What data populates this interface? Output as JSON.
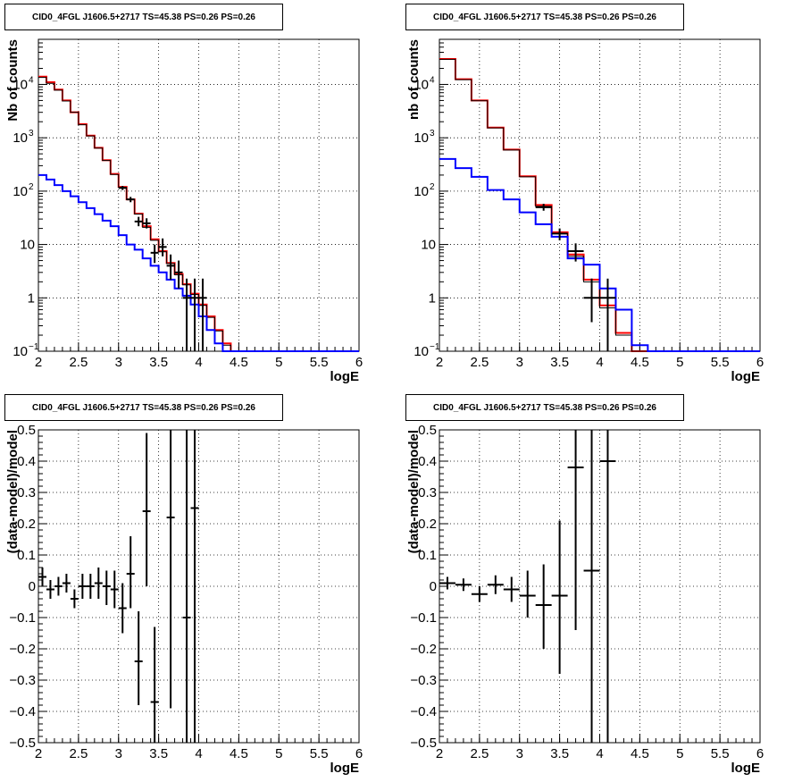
{
  "chart_data": [
    {
      "type": "histogram",
      "title": "CID0_4FGL J1606.5+2717 TS=45.38 PS=0.26 PS=0.26",
      "xlabel": "logE",
      "ylabel": "Nb of counts",
      "xlim": [
        2,
        6
      ],
      "ylim": [
        0.1,
        70000
      ],
      "yscale": "log",
      "grid": true,
      "xticks": [
        "2",
        "2.5",
        "3",
        "3.5",
        "4",
        "4.5",
        "5",
        "5.5",
        "6"
      ],
      "yticks": [
        {
          "value": 0.1,
          "label": "10",
          "sup": "−1"
        },
        {
          "value": 1,
          "label": "1",
          "sup": ""
        },
        {
          "value": 10,
          "label": "10",
          "sup": ""
        },
        {
          "value": 100,
          "label": "10",
          "sup": "2"
        },
        {
          "value": 1000,
          "label": "10",
          "sup": "3"
        },
        {
          "value": 10000,
          "label": "10",
          "sup": "4"
        }
      ],
      "bin_width": 0.1,
      "bin_start": 2.0,
      "series": [
        {
          "color": "#ff0000",
          "style": "step",
          "values": [
            14000,
            11000,
            8000,
            5000,
            3000,
            1800,
            1100,
            650,
            380,
            210,
            120,
            70,
            38,
            22,
            12.5,
            7.5,
            4.5,
            2.8,
            1.8,
            1.2,
            0.75,
            0.45,
            0.25,
            0.14,
            0.1,
            0.1,
            0.1,
            0.1,
            0.1,
            0.1,
            0.1,
            0.1,
            0.1,
            0.1,
            0.1,
            0.1,
            0.1,
            0.1,
            0.1,
            0.1
          ]
        },
        {
          "color": "#000000",
          "style": "step",
          "values": [
            13500,
            10500,
            7800,
            4900,
            3000,
            1750,
            1080,
            640,
            375,
            205,
            118,
            69,
            37,
            21,
            12,
            7.3,
            4.4,
            2.7,
            1.75,
            1.15,
            0.72,
            0.43,
            0.24,
            0.13,
            0.1,
            0.1,
            0.1,
            0.1,
            0.1,
            0.1,
            0.1,
            0.1,
            0.1,
            0.1,
            0.1,
            0.1,
            0.1,
            0.1,
            0.1,
            0.1
          ]
        },
        {
          "color": "#0000ff",
          "style": "step",
          "values": [
            200,
            165,
            130,
            100,
            80,
            62,
            48,
            37,
            28,
            22,
            15,
            10,
            8,
            5.5,
            4,
            3,
            2.2,
            1.5,
            1.1,
            0.75,
            0.45,
            0.25,
            0.14,
            0.1,
            0.1,
            0.1,
            0.1,
            0.1,
            0.1,
            0.1,
            0.1,
            0.1,
            0.1,
            0.1,
            0.1,
            0.1,
            0.1,
            0.1,
            0.1,
            0.1
          ]
        },
        {
          "color": "#000000",
          "style": "errorbar",
          "points": [
            {
              "x": 3.05,
              "y": 115,
              "ylo": 105,
              "yhi": 125
            },
            {
              "x": 3.15,
              "y": 70,
              "ylo": 62,
              "yhi": 78
            },
            {
              "x": 3.25,
              "y": 27,
              "ylo": 22,
              "yhi": 33
            },
            {
              "x": 3.35,
              "y": 25,
              "ylo": 20,
              "yhi": 31
            },
            {
              "x": 3.45,
              "y": 7,
              "ylo": 4.5,
              "yhi": 10
            },
            {
              "x": 3.55,
              "y": 9,
              "ylo": 6,
              "yhi": 13
            },
            {
              "x": 3.65,
              "y": 4,
              "ylo": 2.2,
              "yhi": 6.5
            },
            {
              "x": 3.75,
              "y": 3,
              "ylo": 1.5,
              "yhi": 5
            },
            {
              "x": 3.85,
              "y": 1,
              "ylo": 0.1,
              "yhi": 2.3
            },
            {
              "x": 3.95,
              "y": 1,
              "ylo": 0.1,
              "yhi": 2.3
            },
            {
              "x": 4.05,
              "y": 1,
              "ylo": 0.1,
              "yhi": 2.3
            }
          ]
        }
      ]
    },
    {
      "type": "histogram",
      "title": "CID0_4FGL J1606.5+2717 TS=45.38 PS=0.26 PS=0.26",
      "xlabel": "logE",
      "ylabel": "nb of counts",
      "xlim": [
        2,
        6
      ],
      "ylim": [
        0.1,
        70000
      ],
      "yscale": "log",
      "grid": true,
      "xticks": [
        "2",
        "2.5",
        "3",
        "3.5",
        "4",
        "4.5",
        "5",
        "5.5",
        "6"
      ],
      "yticks": [
        {
          "value": 0.1,
          "label": "10",
          "sup": "−1"
        },
        {
          "value": 1,
          "label": "1",
          "sup": ""
        },
        {
          "value": 10,
          "label": "10",
          "sup": ""
        },
        {
          "value": 100,
          "label": "10",
          "sup": "2"
        },
        {
          "value": 1000,
          "label": "10",
          "sup": "3"
        },
        {
          "value": 10000,
          "label": "10",
          "sup": "4"
        }
      ],
      "bin_width": 0.2,
      "bin_start": 2.0,
      "series": [
        {
          "color": "#ff0000",
          "style": "step",
          "values": [
            30000,
            12500,
            5000,
            1550,
            600,
            190,
            55,
            17,
            6.5,
            2.2,
            0.72,
            0.22,
            0.1,
            0.1,
            0.1,
            0.1,
            0.1,
            0.1,
            0.1,
            0.1
          ]
        },
        {
          "color": "#000000",
          "style": "step",
          "values": [
            29500,
            12300,
            4950,
            1530,
            590,
            185,
            52,
            16,
            6,
            2,
            0.65,
            0.2,
            0.1,
            0.1,
            0.1,
            0.1,
            0.1,
            0.1,
            0.1,
            0.1
          ]
        },
        {
          "color": "#0000ff",
          "style": "step",
          "values": [
            400,
            270,
            185,
            105,
            70,
            40,
            24,
            14,
            5.5,
            4.2,
            1.5,
            0.6,
            0.13,
            0.1,
            0.1,
            0.1,
            0.1,
            0.1,
            0.1,
            0.1
          ]
        },
        {
          "color": "#000000",
          "style": "errorbar",
          "points": [
            {
              "x": 3.3,
              "y": 50,
              "ylo": 43,
              "yhi": 58
            },
            {
              "x": 3.5,
              "y": 16,
              "ylo": 12,
              "yhi": 20
            },
            {
              "x": 3.7,
              "y": 7.5,
              "ylo": 4.8,
              "yhi": 10.5
            },
            {
              "x": 3.9,
              "y": 1,
              "ylo": 0.35,
              "yhi": 2.3
            },
            {
              "x": 4.1,
              "y": 1,
              "ylo": 0.1,
              "yhi": 2.3
            }
          ]
        }
      ]
    },
    {
      "type": "scatter",
      "title": "CID0_4FGL J1606.5+2717 TS=45.38 PS=0.26 PS=0.26",
      "xlabel": "logE",
      "ylabel": "(data-model)/model",
      "xlim": [
        2,
        6
      ],
      "ylim": [
        -0.5,
        0.5
      ],
      "grid": true,
      "xticks": [
        "2",
        "2.5",
        "3",
        "3.5",
        "4",
        "4.5",
        "5",
        "5.5",
        "6"
      ],
      "yticks": [
        "−0.5",
        "−0.4",
        "−0.3",
        "−0.2",
        "−0.1",
        "0",
        "0.1",
        "0.2",
        "0.3",
        "0.4",
        "0.5"
      ],
      "ytick_values": [
        -0.5,
        -0.4,
        -0.3,
        -0.2,
        -0.1,
        0,
        0.1,
        0.2,
        0.3,
        0.4,
        0.5
      ],
      "xerr": 0.05,
      "points": [
        {
          "x": 2.05,
          "y": 0.03,
          "ylo": 0.0,
          "yhi": 0.06
        },
        {
          "x": 2.15,
          "y": -0.01,
          "ylo": -0.04,
          "yhi": 0.02
        },
        {
          "x": 2.25,
          "y": 0.0,
          "ylo": -0.03,
          "yhi": 0.03
        },
        {
          "x": 2.35,
          "y": 0.01,
          "ylo": -0.02,
          "yhi": 0.04
        },
        {
          "x": 2.45,
          "y": -0.04,
          "ylo": -0.07,
          "yhi": -0.01
        },
        {
          "x": 2.55,
          "y": 0.0,
          "ylo": -0.04,
          "yhi": 0.04
        },
        {
          "x": 2.65,
          "y": 0.0,
          "ylo": -0.04,
          "yhi": 0.04
        },
        {
          "x": 2.75,
          "y": 0.01,
          "ylo": -0.04,
          "yhi": 0.06
        },
        {
          "x": 2.85,
          "y": 0.0,
          "ylo": -0.06,
          "yhi": 0.05
        },
        {
          "x": 2.95,
          "y": -0.01,
          "ylo": -0.07,
          "yhi": 0.05
        },
        {
          "x": 3.05,
          "y": -0.07,
          "ylo": -0.15,
          "yhi": 0.01
        },
        {
          "x": 3.15,
          "y": 0.04,
          "ylo": -0.07,
          "yhi": 0.16
        },
        {
          "x": 3.25,
          "y": -0.24,
          "ylo": -0.38,
          "yhi": -0.08
        },
        {
          "x": 3.35,
          "y": 0.24,
          "ylo": 0.0,
          "yhi": 0.49
        },
        {
          "x": 3.45,
          "y": -0.37,
          "ylo": -0.5,
          "yhi": -0.13
        },
        {
          "x": 3.65,
          "y": 0.22,
          "ylo": -0.39,
          "yhi": 0.5
        },
        {
          "x": 3.85,
          "y": -0.1,
          "ylo": -0.5,
          "yhi": 0.5
        },
        {
          "x": 3.95,
          "y": 0.25,
          "ylo": -0.5,
          "yhi": 0.5
        }
      ]
    },
    {
      "type": "scatter",
      "title": "CID0_4FGL J1606.5+2717 TS=45.38 PS=0.26 PS=0.26",
      "xlabel": "logE",
      "ylabel": "(data-model)/model",
      "xlim": [
        2,
        6
      ],
      "ylim": [
        -0.5,
        0.5
      ],
      "grid": true,
      "xticks": [
        "2",
        "2.5",
        "3",
        "3.5",
        "4",
        "4.5",
        "5",
        "5.5",
        "6"
      ],
      "yticks": [
        "−0.5",
        "−0.4",
        "−0.3",
        "−0.2",
        "−0.1",
        "0",
        "0.1",
        "0.2",
        "0.3",
        "0.4",
        "0.5"
      ],
      "ytick_values": [
        -0.5,
        -0.4,
        -0.3,
        -0.2,
        -0.1,
        0,
        0.1,
        0.2,
        0.3,
        0.4,
        0.5
      ],
      "xerr": 0.1,
      "points": [
        {
          "x": 2.1,
          "y": 0.01,
          "ylo": -0.01,
          "yhi": 0.03
        },
        {
          "x": 2.3,
          "y": 0.005,
          "ylo": -0.015,
          "yhi": 0.025
        },
        {
          "x": 2.5,
          "y": -0.025,
          "ylo": -0.05,
          "yhi": 0.0
        },
        {
          "x": 2.7,
          "y": 0.005,
          "ylo": -0.025,
          "yhi": 0.035
        },
        {
          "x": 2.9,
          "y": -0.01,
          "ylo": -0.05,
          "yhi": 0.03
        },
        {
          "x": 3.1,
          "y": -0.03,
          "ylo": -0.1,
          "yhi": 0.05
        },
        {
          "x": 3.3,
          "y": -0.06,
          "ylo": -0.2,
          "yhi": 0.07
        },
        {
          "x": 3.5,
          "y": -0.03,
          "ylo": -0.28,
          "yhi": 0.21
        },
        {
          "x": 3.7,
          "y": 0.38,
          "ylo": -0.14,
          "yhi": 0.5
        },
        {
          "x": 3.9,
          "y": 0.05,
          "ylo": -0.5,
          "yhi": 0.5
        },
        {
          "x": 4.1,
          "y": 0.4,
          "ylo": -0.5,
          "yhi": 0.5
        }
      ]
    }
  ]
}
